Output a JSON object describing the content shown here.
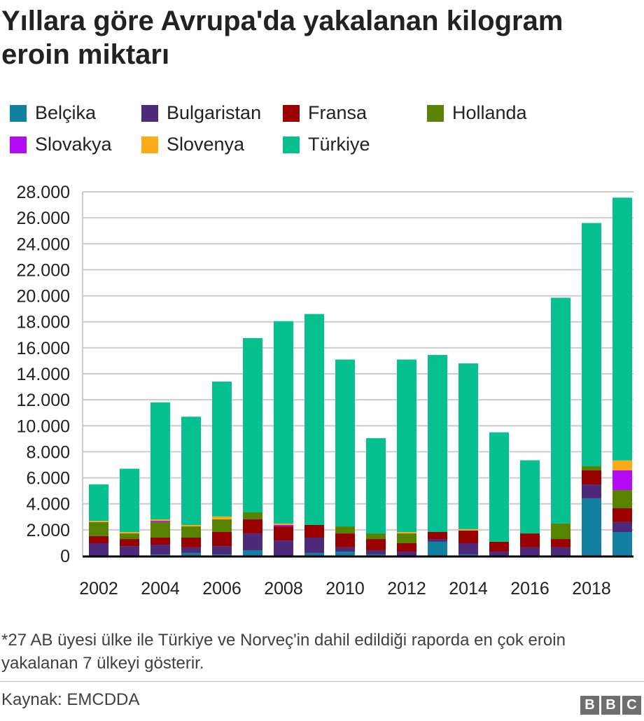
{
  "title": "Yıllara göre Avrupa'da yakalanan kilogram eroin miktarı",
  "footnote": "*27 AB üyesi ülke ile Türkiye ve Norveç'in dahil edildiği raporda en çok eroin yakalanan 7 ülkeyi gösterir.",
  "source": "Kaynak: EMCDDA",
  "logo": "BBC",
  "chart_data": {
    "type": "bar",
    "stacked": true,
    "title": "Yıllara göre Avrupa'da yakalanan kilogram eroin miktarı",
    "categories": [
      2002,
      2003,
      2004,
      2005,
      2006,
      2007,
      2008,
      2009,
      2010,
      2011,
      2012,
      2013,
      2014,
      2015,
      2016,
      2017,
      2018,
      2019
    ],
    "x_tick_labels": [
      "2002",
      "2004",
      "2006",
      "2008",
      "2010",
      "2012",
      "2014",
      "2016",
      "2018"
    ],
    "y_tick_labels": [
      "0",
      "2.000",
      "4.000",
      "6.000",
      "8.000",
      "10.000",
      "12.000",
      "14.000",
      "16.000",
      "18.000",
      "20.000",
      "22.000",
      "24.000",
      "26.000",
      "28.000"
    ],
    "ylim": [
      0,
      28000
    ],
    "grid": true,
    "legend_placement": "top",
    "series": [
      {
        "name": "Belçika",
        "color": "#1380A1",
        "values": [
          0,
          0,
          100,
          220,
          100,
          430,
          0,
          220,
          320,
          110,
          0,
          1080,
          110,
          0,
          0,
          0,
          4420,
          1830
        ]
      },
      {
        "name": "Bulgaristan",
        "color": "#4D2A7A",
        "values": [
          970,
          750,
          760,
          430,
          650,
          1290,
          1180,
          1180,
          330,
          320,
          320,
          210,
          860,
          320,
          650,
          650,
          1070,
          760
        ]
      },
      {
        "name": "Fransa",
        "color": "#990000",
        "values": [
          540,
          540,
          540,
          750,
          1080,
          1080,
          1080,
          970,
          1070,
          860,
          650,
          540,
          970,
          760,
          1070,
          640,
          1080,
          1070
        ]
      },
      {
        "name": "Hollanda",
        "color": "#588300",
        "values": [
          1080,
          430,
          1190,
          860,
          970,
          540,
          0,
          0,
          540,
          430,
          750,
          0,
          0,
          0,
          0,
          1190,
          320,
          1400
        ]
      },
      {
        "name": "Slovakya",
        "color": "#B20CF5",
        "values": [
          0,
          0,
          100,
          0,
          0,
          0,
          110,
          0,
          0,
          0,
          0,
          0,
          0,
          0,
          0,
          0,
          0,
          1510
        ]
      },
      {
        "name": "Slovenya",
        "color": "#FAAB18",
        "values": [
          100,
          110,
          110,
          110,
          220,
          0,
          110,
          0,
          0,
          0,
          110,
          0,
          110,
          0,
          0,
          0,
          0,
          760
        ]
      },
      {
        "name": "Türkiye",
        "color": "#06C18F",
        "values": [
          2810,
          4870,
          9000,
          8330,
          10380,
          13410,
          15570,
          16230,
          12840,
          7330,
          13270,
          13620,
          12750,
          8420,
          5630,
          17370,
          18710,
          20220
        ]
      }
    ]
  }
}
